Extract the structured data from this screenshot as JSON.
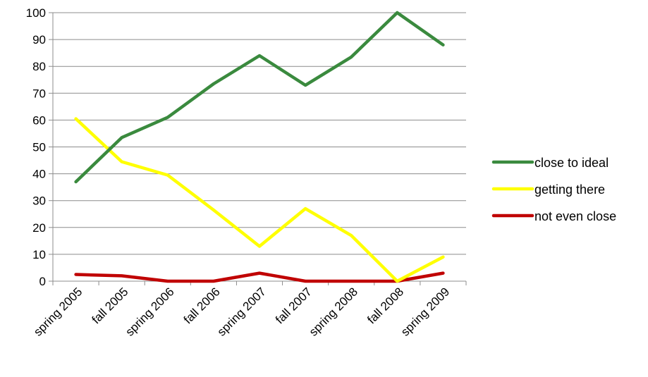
{
  "chart_data": {
    "type": "line",
    "categories": [
      "spring 2005",
      "fall 2005",
      "spring 2006",
      "fall 2006",
      "spring 2007",
      "fall 2007",
      "spring 2008",
      "fall 2008",
      "spring 2009"
    ],
    "series": [
      {
        "name": "close to ideal",
        "color": "#3a8a3e",
        "values": [
          37,
          53.5,
          61,
          73.5,
          84,
          73,
          83.5,
          100,
          88
        ]
      },
      {
        "name": "getting there",
        "color": "#ffff00",
        "values": [
          60.5,
          44.5,
          39.5,
          26.5,
          13,
          27,
          17,
          0,
          9
        ]
      },
      {
        "name": "not even close",
        "color": "#c00000",
        "values": [
          2.5,
          2,
          0,
          0,
          3,
          0,
          0,
          0,
          3
        ]
      }
    ],
    "yticks": [
      "0",
      "10",
      "20",
      "30",
      "40",
      "50",
      "60",
      "70",
      "80",
      "90",
      "100"
    ],
    "ylim": [
      0,
      100
    ],
    "grid": true,
    "legend": "right",
    "title": "",
    "xlabel": "",
    "ylabel": ""
  }
}
